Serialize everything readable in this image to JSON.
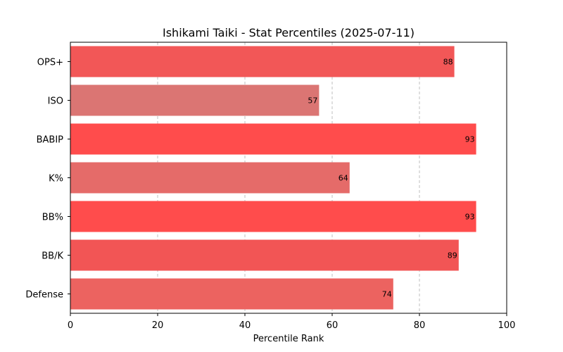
{
  "chart_data": {
    "type": "bar",
    "orientation": "horizontal",
    "title": "Ishikami Taiki - Stat Percentiles (2025-07-11)",
    "xlabel": "Percentile Rank",
    "ylabel": "",
    "xlim": [
      0,
      100
    ],
    "x_ticks": [
      0,
      20,
      40,
      60,
      80,
      100
    ],
    "grid": "vertical dashed",
    "categories": [
      "OPS+",
      "ISO",
      "BABIP",
      "K%",
      "BB%",
      "BB/K",
      "Defense"
    ],
    "values": [
      88,
      57,
      93,
      64,
      93,
      89,
      74
    ],
    "colors": [
      "#f25757",
      "#db7573",
      "#ff4c4c",
      "#e56b69",
      "#ff4c4c",
      "#f25555",
      "#ec6360"
    ]
  }
}
